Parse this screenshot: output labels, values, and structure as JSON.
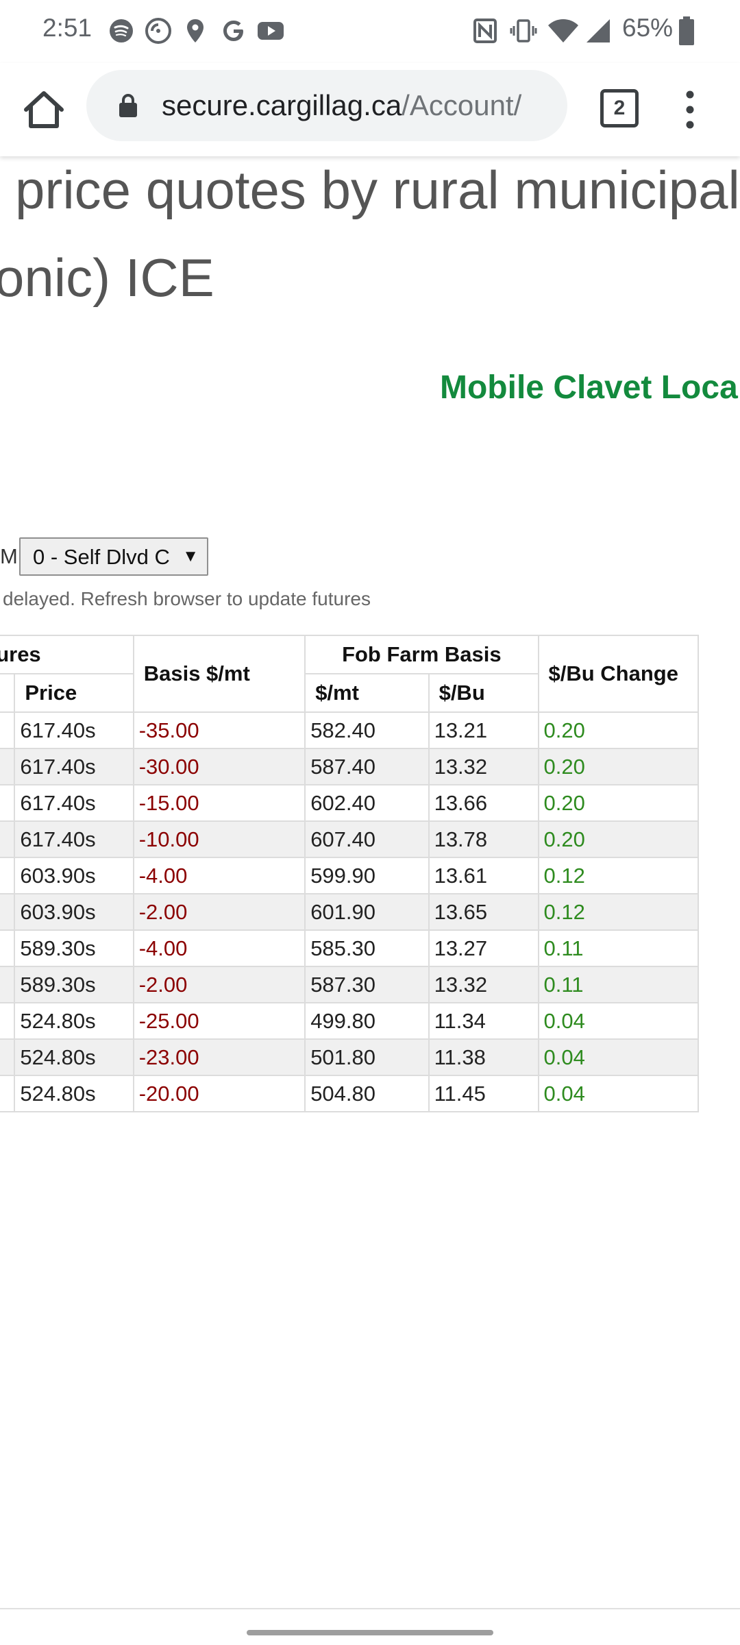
{
  "status_bar": {
    "time": "2:51",
    "battery": "65%",
    "left_icons": [
      "spotify-icon",
      "pocket-casts-icon",
      "location-pin-icon",
      "google-icon",
      "youtube-icon"
    ],
    "right_icons": [
      "nfc-icon",
      "vibrate-icon",
      "wifi-icon",
      "signal-icon",
      "battery-icon"
    ]
  },
  "browser": {
    "url_domain": "secure.cargillag.ca",
    "url_path": "/Account/",
    "tab_count": "2"
  },
  "page": {
    "heading_line1": "price quotes by rural municipalit",
    "heading_line2": "onic) ICE",
    "location_title": "Mobile Clavet Local",
    "rm_label": "M",
    "rm_select_value": "0 - Self Dlvd C",
    "rm_select_arrow": "▼",
    "delay_note": "delayed. Refresh browser to update futures"
  },
  "table": {
    "header": {
      "futures_group": "Futures",
      "price": "Price",
      "basis": "Basis $/mt",
      "fob_group": "Fob Farm Basis",
      "fob_mt": "$/mt",
      "fob_bu": "$/Bu",
      "change": "$/Bu Change"
    },
    "rows": [
      {
        "price": "617.40s",
        "basis": "-35.00",
        "fob_mt": "582.40",
        "fob_bu": "13.21",
        "change": "0.20"
      },
      {
        "price": "617.40s",
        "basis": "-30.00",
        "fob_mt": "587.40",
        "fob_bu": "13.32",
        "change": "0.20"
      },
      {
        "price": "617.40s",
        "basis": "-15.00",
        "fob_mt": "602.40",
        "fob_bu": "13.66",
        "change": "0.20"
      },
      {
        "price": "617.40s",
        "basis": "-10.00",
        "fob_mt": "607.40",
        "fob_bu": "13.78",
        "change": "0.20"
      },
      {
        "price": "603.90s",
        "basis": "-4.00",
        "fob_mt": "599.90",
        "fob_bu": "13.61",
        "change": "0.12"
      },
      {
        "price": "603.90s",
        "basis": "-2.00",
        "fob_mt": "601.90",
        "fob_bu": "13.65",
        "change": "0.12"
      },
      {
        "price": "589.30s",
        "basis": "-4.00",
        "fob_mt": "585.30",
        "fob_bu": "13.27",
        "change": "0.11"
      },
      {
        "price": "589.30s",
        "basis": "-2.00",
        "fob_mt": "587.30",
        "fob_bu": "13.32",
        "change": "0.11"
      },
      {
        "price": "524.80s",
        "basis": "-25.00",
        "fob_mt": "499.80",
        "fob_bu": "11.34",
        "change": "0.04"
      },
      {
        "price": "524.80s",
        "basis": "-23.00",
        "fob_mt": "501.80",
        "fob_bu": "11.38",
        "change": "0.04"
      },
      {
        "price": "524.80s",
        "basis": "-20.00",
        "fob_mt": "504.80",
        "fob_bu": "11.45",
        "change": "0.04"
      }
    ]
  },
  "colors": {
    "location_title": "#138a3d",
    "negative_basis": "#8b0000",
    "positive_change": "#2e8b1f",
    "row_alt": "#f0f0f0"
  }
}
